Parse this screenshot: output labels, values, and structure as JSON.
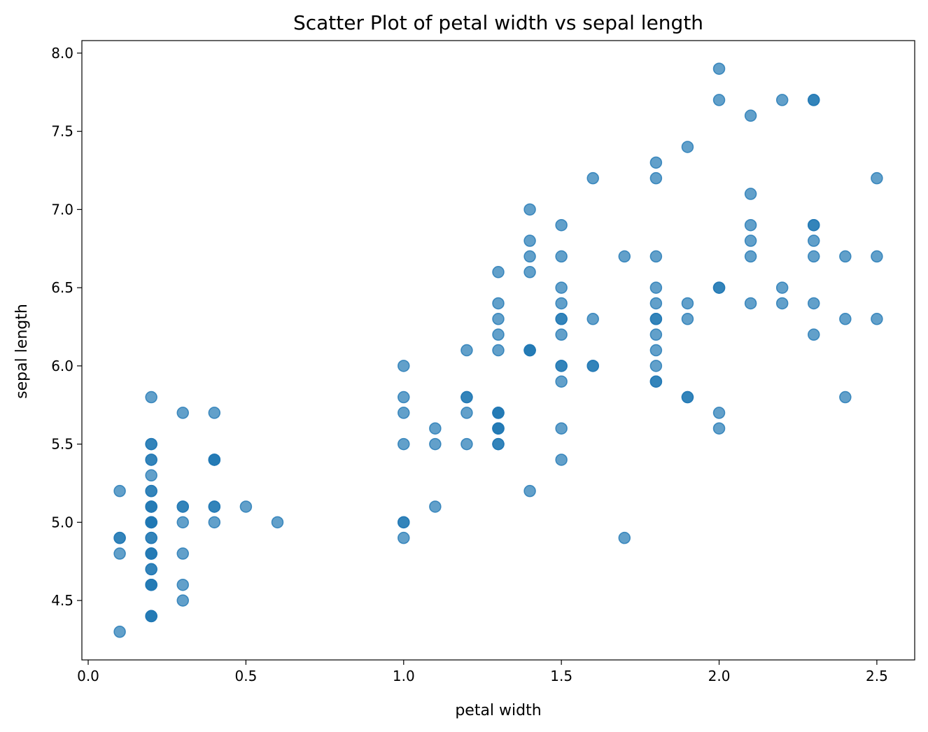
{
  "chart_data": {
    "type": "scatter",
    "title": "Scatter Plot of petal width vs sepal length",
    "xlabel": "petal width",
    "ylabel": "sepal length",
    "xlim": [
      -0.02,
      2.62
    ],
    "ylim": [
      4.12,
      8.08
    ],
    "xticks": [
      0.0,
      0.5,
      1.0,
      1.5,
      2.0,
      2.5
    ],
    "xtick_labels": [
      "0.0",
      "0.5",
      "1.0",
      "1.5",
      "2.0",
      "2.5"
    ],
    "yticks": [
      4.5,
      5.0,
      5.5,
      6.0,
      6.5,
      7.0,
      7.5,
      8.0
    ],
    "ytick_labels": [
      "4.5",
      "5.0",
      "5.5",
      "6.0",
      "6.5",
      "7.0",
      "7.5",
      "8.0"
    ],
    "grid": false,
    "marker_color": "#1f77b4",
    "marker_alpha": 0.7,
    "points": [
      {
        "x": 0.2,
        "y": 5.1
      },
      {
        "x": 0.2,
        "y": 4.9
      },
      {
        "x": 0.2,
        "y": 4.7
      },
      {
        "x": 0.2,
        "y": 4.6
      },
      {
        "x": 0.2,
        "y": 5.0
      },
      {
        "x": 0.4,
        "y": 5.4
      },
      {
        "x": 0.3,
        "y": 4.6
      },
      {
        "x": 0.2,
        "y": 5.0
      },
      {
        "x": 0.2,
        "y": 4.4
      },
      {
        "x": 0.1,
        "y": 4.9
      },
      {
        "x": 0.2,
        "y": 5.4
      },
      {
        "x": 0.2,
        "y": 4.8
      },
      {
        "x": 0.1,
        "y": 4.8
      },
      {
        "x": 0.1,
        "y": 4.3
      },
      {
        "x": 0.2,
        "y": 5.8
      },
      {
        "x": 0.4,
        "y": 5.7
      },
      {
        "x": 0.4,
        "y": 5.4
      },
      {
        "x": 0.3,
        "y": 5.1
      },
      {
        "x": 0.3,
        "y": 5.7
      },
      {
        "x": 0.3,
        "y": 5.1
      },
      {
        "x": 0.2,
        "y": 5.4
      },
      {
        "x": 0.4,
        "y": 5.1
      },
      {
        "x": 0.2,
        "y": 4.6
      },
      {
        "x": 0.5,
        "y": 5.1
      },
      {
        "x": 0.2,
        "y": 4.8
      },
      {
        "x": 0.2,
        "y": 5.0
      },
      {
        "x": 0.4,
        "y": 5.0
      },
      {
        "x": 0.2,
        "y": 5.2
      },
      {
        "x": 0.2,
        "y": 5.2
      },
      {
        "x": 0.2,
        "y": 4.7
      },
      {
        "x": 0.2,
        "y": 4.8
      },
      {
        "x": 0.4,
        "y": 5.4
      },
      {
        "x": 0.1,
        "y": 5.2
      },
      {
        "x": 0.2,
        "y": 5.5
      },
      {
        "x": 0.2,
        "y": 4.9
      },
      {
        "x": 0.2,
        "y": 5.0
      },
      {
        "x": 0.2,
        "y": 5.5
      },
      {
        "x": 0.1,
        "y": 4.9
      },
      {
        "x": 0.2,
        "y": 4.4
      },
      {
        "x": 0.2,
        "y": 5.1
      },
      {
        "x": 0.3,
        "y": 5.0
      },
      {
        "x": 0.3,
        "y": 4.5
      },
      {
        "x": 0.2,
        "y": 4.4
      },
      {
        "x": 0.6,
        "y": 5.0
      },
      {
        "x": 0.4,
        "y": 5.1
      },
      {
        "x": 0.3,
        "y": 4.8
      },
      {
        "x": 0.2,
        "y": 5.1
      },
      {
        "x": 0.2,
        "y": 4.6
      },
      {
        "x": 0.2,
        "y": 5.3
      },
      {
        "x": 0.2,
        "y": 5.0
      },
      {
        "x": 1.4,
        "y": 7.0
      },
      {
        "x": 1.5,
        "y": 6.4
      },
      {
        "x": 1.5,
        "y": 6.9
      },
      {
        "x": 1.3,
        "y": 5.5
      },
      {
        "x": 1.5,
        "y": 6.5
      },
      {
        "x": 1.3,
        "y": 5.7
      },
      {
        "x": 1.6,
        "y": 6.3
      },
      {
        "x": 1.0,
        "y": 4.9
      },
      {
        "x": 1.3,
        "y": 6.6
      },
      {
        "x": 1.4,
        "y": 5.2
      },
      {
        "x": 1.0,
        "y": 5.0
      },
      {
        "x": 1.5,
        "y": 5.9
      },
      {
        "x": 1.0,
        "y": 6.0
      },
      {
        "x": 1.4,
        "y": 6.1
      },
      {
        "x": 1.3,
        "y": 5.6
      },
      {
        "x": 1.4,
        "y": 6.7
      },
      {
        "x": 1.5,
        "y": 5.6
      },
      {
        "x": 1.0,
        "y": 5.8
      },
      {
        "x": 1.5,
        "y": 6.2
      },
      {
        "x": 1.1,
        "y": 5.6
      },
      {
        "x": 1.8,
        "y": 5.9
      },
      {
        "x": 1.3,
        "y": 6.1
      },
      {
        "x": 1.5,
        "y": 6.3
      },
      {
        "x": 1.2,
        "y": 6.1
      },
      {
        "x": 1.3,
        "y": 6.4
      },
      {
        "x": 1.4,
        "y": 6.6
      },
      {
        "x": 1.4,
        "y": 6.8
      },
      {
        "x": 1.7,
        "y": 6.7
      },
      {
        "x": 1.5,
        "y": 6.0
      },
      {
        "x": 1.0,
        "y": 5.7
      },
      {
        "x": 1.1,
        "y": 5.5
      },
      {
        "x": 1.0,
        "y": 5.5
      },
      {
        "x": 1.2,
        "y": 5.8
      },
      {
        "x": 1.6,
        "y": 6.0
      },
      {
        "x": 1.5,
        "y": 5.4
      },
      {
        "x": 1.6,
        "y": 6.0
      },
      {
        "x": 1.5,
        "y": 6.7
      },
      {
        "x": 1.3,
        "y": 6.3
      },
      {
        "x": 1.3,
        "y": 5.6
      },
      {
        "x": 1.3,
        "y": 5.5
      },
      {
        "x": 1.2,
        "y": 5.5
      },
      {
        "x": 1.4,
        "y": 6.1
      },
      {
        "x": 1.2,
        "y": 5.8
      },
      {
        "x": 1.0,
        "y": 5.0
      },
      {
        "x": 1.3,
        "y": 5.6
      },
      {
        "x": 1.2,
        "y": 5.7
      },
      {
        "x": 1.3,
        "y": 5.7
      },
      {
        "x": 1.3,
        "y": 6.2
      },
      {
        "x": 1.1,
        "y": 5.1
      },
      {
        "x": 1.3,
        "y": 5.7
      },
      {
        "x": 2.5,
        "y": 6.3
      },
      {
        "x": 1.9,
        "y": 5.8
      },
      {
        "x": 2.1,
        "y": 7.1
      },
      {
        "x": 1.8,
        "y": 6.3
      },
      {
        "x": 2.2,
        "y": 6.5
      },
      {
        "x": 2.1,
        "y": 7.6
      },
      {
        "x": 1.7,
        "y": 4.9
      },
      {
        "x": 1.8,
        "y": 7.3
      },
      {
        "x": 1.8,
        "y": 6.7
      },
      {
        "x": 2.5,
        "y": 7.2
      },
      {
        "x": 2.0,
        "y": 6.5
      },
      {
        "x": 1.9,
        "y": 6.4
      },
      {
        "x": 2.1,
        "y": 6.8
      },
      {
        "x": 2.0,
        "y": 5.7
      },
      {
        "x": 2.4,
        "y": 5.8
      },
      {
        "x": 2.3,
        "y": 6.4
      },
      {
        "x": 1.8,
        "y": 6.5
      },
      {
        "x": 2.2,
        "y": 7.7
      },
      {
        "x": 2.3,
        "y": 7.7
      },
      {
        "x": 1.5,
        "y": 6.0
      },
      {
        "x": 2.3,
        "y": 6.9
      },
      {
        "x": 2.0,
        "y": 5.6
      },
      {
        "x": 2.0,
        "y": 7.7
      },
      {
        "x": 1.8,
        "y": 6.3
      },
      {
        "x": 2.1,
        "y": 6.7
      },
      {
        "x": 1.8,
        "y": 7.2
      },
      {
        "x": 1.8,
        "y": 6.2
      },
      {
        "x": 1.8,
        "y": 6.1
      },
      {
        "x": 2.1,
        "y": 6.4
      },
      {
        "x": 1.6,
        "y": 7.2
      },
      {
        "x": 1.9,
        "y": 7.4
      },
      {
        "x": 2.0,
        "y": 7.9
      },
      {
        "x": 2.2,
        "y": 6.4
      },
      {
        "x": 1.5,
        "y": 6.3
      },
      {
        "x": 1.4,
        "y": 6.1
      },
      {
        "x": 2.3,
        "y": 7.7
      },
      {
        "x": 2.4,
        "y": 6.3
      },
      {
        "x": 1.8,
        "y": 6.4
      },
      {
        "x": 1.8,
        "y": 6.0
      },
      {
        "x": 2.1,
        "y": 6.9
      },
      {
        "x": 2.4,
        "y": 6.7
      },
      {
        "x": 2.3,
        "y": 6.9
      },
      {
        "x": 1.9,
        "y": 5.8
      },
      {
        "x": 2.3,
        "y": 6.8
      },
      {
        "x": 2.5,
        "y": 6.7
      },
      {
        "x": 2.3,
        "y": 6.7
      },
      {
        "x": 1.9,
        "y": 6.3
      },
      {
        "x": 2.0,
        "y": 6.5
      },
      {
        "x": 2.3,
        "y": 6.2
      },
      {
        "x": 1.8,
        "y": 5.9
      }
    ]
  }
}
